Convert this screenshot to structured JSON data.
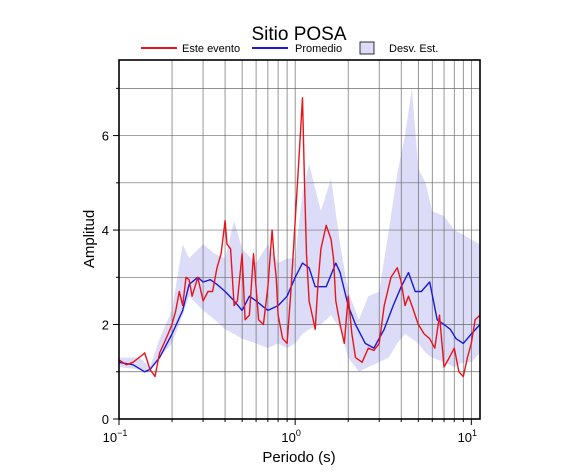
{
  "chart_data": {
    "type": "line",
    "title": "Sitio POSA",
    "xlabel": "Periodo (s)",
    "ylabel": "Amplitud",
    "xscale": "log",
    "xlim": [
      0.1,
      11.2
    ],
    "ylim": [
      0,
      7.6
    ],
    "x_ticks": [
      {
        "value": 0.1,
        "base": "10",
        "exp": "−1"
      },
      {
        "value": 1,
        "base": "10",
        "exp": "0"
      },
      {
        "value": 10,
        "base": "10",
        "exp": "1"
      }
    ],
    "y_ticks": [
      0,
      2,
      4,
      6
    ],
    "grid": true,
    "legend": {
      "position": "top",
      "items": [
        {
          "label": "Este evento",
          "kind": "line",
          "color": "#e8141b"
        },
        {
          "label": "Promedio",
          "kind": "line",
          "color": "#1a1ad8"
        },
        {
          "label": "Desv. Est.",
          "kind": "band",
          "color": "#dcdcf8"
        }
      ]
    },
    "band": {
      "name": "Desv. Est.",
      "color": "#dcdcf8",
      "x": [
        0.1,
        0.13,
        0.15,
        0.17,
        0.2,
        0.23,
        0.25,
        0.3,
        0.35,
        0.4,
        0.45,
        0.5,
        0.6,
        0.7,
        0.8,
        0.9,
        1.0,
        1.1,
        1.2,
        1.4,
        1.6,
        1.8,
        2.0,
        2.3,
        2.6,
        3.0,
        3.4,
        3.8,
        4.2,
        4.6,
        5.0,
        5.5,
        6.0,
        7.0,
        8.0,
        9.0,
        10.0,
        11.2
      ],
      "lower": [
        1.1,
        1.05,
        1.0,
        1.3,
        1.6,
        2.2,
        2.6,
        2.3,
        2.1,
        1.9,
        1.8,
        1.7,
        1.6,
        1.5,
        1.6,
        1.5,
        1.6,
        1.8,
        1.9,
        2.0,
        2.2,
        1.9,
        1.3,
        1.0,
        1.1,
        1.2,
        1.3,
        1.6,
        1.8,
        1.7,
        1.6,
        1.4,
        1.3,
        1.2,
        1.1,
        1.2,
        1.2,
        1.4
      ],
      "upper": [
        1.3,
        1.3,
        1.1,
        1.7,
        2.3,
        3.7,
        3.4,
        3.7,
        3.5,
        3.4,
        4.2,
        3.6,
        3.3,
        3.7,
        3.3,
        3.4,
        3.4,
        4.8,
        5.4,
        4.4,
        5.1,
        3.7,
        2.7,
        2.1,
        2.6,
        2.7,
        4.0,
        5.2,
        6.0,
        7.0,
        5.3,
        5.0,
        4.4,
        4.3,
        4.0,
        3.9,
        3.8,
        3.7
      ]
    },
    "series": [
      {
        "name": "Promedio",
        "color": "#1a1ad8",
        "x": [
          0.1,
          0.12,
          0.14,
          0.15,
          0.17,
          0.2,
          0.23,
          0.25,
          0.28,
          0.3,
          0.33,
          0.36,
          0.4,
          0.45,
          0.5,
          0.55,
          0.6,
          0.7,
          0.8,
          0.9,
          1.0,
          1.1,
          1.2,
          1.3,
          1.5,
          1.7,
          1.8,
          2.0,
          2.2,
          2.5,
          2.8,
          3.2,
          3.6,
          4.0,
          4.4,
          4.8,
          5.2,
          5.8,
          6.4,
          7.0,
          7.6,
          8.2,
          9.0,
          10.0,
          11.2
        ],
        "y": [
          1.2,
          1.15,
          1.0,
          1.05,
          1.3,
          1.8,
          2.3,
          2.85,
          3.0,
          2.9,
          2.95,
          2.85,
          2.7,
          2.5,
          2.3,
          2.6,
          2.5,
          2.3,
          2.4,
          2.6,
          3.0,
          3.3,
          3.2,
          2.8,
          2.8,
          3.3,
          3.1,
          2.4,
          2.0,
          1.6,
          1.5,
          1.9,
          2.4,
          2.8,
          3.1,
          2.7,
          2.7,
          2.9,
          2.1,
          2.0,
          1.9,
          1.7,
          1.6,
          1.8,
          2.0
        ]
      },
      {
        "name": "Este evento",
        "color": "#e8141b",
        "x": [
          0.1,
          0.11,
          0.12,
          0.13,
          0.14,
          0.15,
          0.16,
          0.17,
          0.18,
          0.19,
          0.2,
          0.21,
          0.22,
          0.23,
          0.24,
          0.25,
          0.26,
          0.28,
          0.3,
          0.32,
          0.34,
          0.36,
          0.38,
          0.4,
          0.41,
          0.43,
          0.45,
          0.47,
          0.5,
          0.52,
          0.55,
          0.58,
          0.62,
          0.66,
          0.7,
          0.74,
          0.76,
          0.78,
          0.8,
          0.85,
          0.9,
          0.95,
          1.0,
          1.05,
          1.1,
          1.13,
          1.16,
          1.2,
          1.25,
          1.3,
          1.35,
          1.4,
          1.5,
          1.6,
          1.65,
          1.7,
          1.8,
          1.9,
          2.0,
          2.1,
          2.2,
          2.4,
          2.6,
          2.8,
          3.0,
          3.2,
          3.5,
          3.8,
          4.0,
          4.2,
          4.4,
          4.6,
          5.0,
          5.4,
          5.8,
          6.2,
          6.6,
          7.0,
          7.5,
          8.0,
          8.5,
          9.0,
          9.5,
          10.0,
          10.5,
          11.2
        ],
        "y": [
          1.25,
          1.15,
          1.2,
          1.3,
          1.4,
          1.05,
          0.9,
          1.4,
          1.6,
          1.8,
          2.0,
          2.3,
          2.7,
          2.4,
          3.0,
          2.95,
          2.6,
          3.0,
          2.5,
          2.7,
          2.7,
          3.2,
          3.5,
          4.2,
          3.7,
          3.6,
          2.4,
          2.5,
          3.5,
          2.1,
          2.2,
          3.5,
          2.1,
          2.0,
          2.8,
          4.0,
          3.4,
          3.0,
          2.2,
          1.7,
          1.6,
          2.8,
          4.2,
          5.5,
          6.8,
          5.0,
          3.5,
          2.5,
          2.2,
          1.9,
          2.9,
          3.6,
          4.1,
          3.8,
          3.4,
          2.5,
          2.0,
          1.6,
          2.6,
          1.8,
          1.3,
          1.2,
          1.5,
          1.45,
          1.6,
          2.4,
          3.0,
          3.2,
          2.9,
          2.4,
          2.6,
          2.4,
          2.0,
          1.8,
          1.7,
          1.5,
          2.2,
          1.1,
          1.3,
          1.5,
          1.0,
          0.9,
          1.3,
          1.6,
          2.1,
          2.2
        ]
      }
    ]
  }
}
